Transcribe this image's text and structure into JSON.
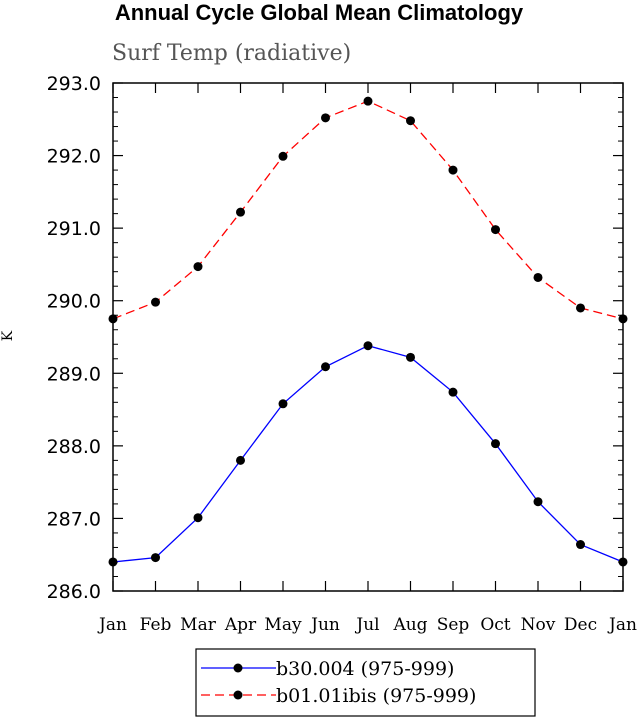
{
  "chart_data": {
    "type": "line",
    "title": "Annual Cycle Global Mean Climatology",
    "subtitle": "Surf Temp (radiative)",
    "ylabel": "K",
    "xlabel": "",
    "categories": [
      "Jan",
      "Feb",
      "Mar",
      "Apr",
      "May",
      "Jun",
      "Jul",
      "Aug",
      "Sep",
      "Oct",
      "Nov",
      "Dec",
      "Jan"
    ],
    "ylim": [
      286.0,
      293.0
    ],
    "yticks": [
      "286.0",
      "287.0",
      "288.0",
      "289.0",
      "290.0",
      "291.0",
      "292.0",
      "293.0"
    ],
    "series": [
      {
        "name": "b30.004 (975-999)",
        "color": "#0000ff",
        "line_style": "solid",
        "values": [
          286.4,
          286.46,
          287.01,
          287.8,
          288.58,
          289.09,
          289.38,
          289.22,
          288.74,
          288.03,
          287.23,
          286.64,
          286.4
        ]
      },
      {
        "name": "b01.01ibis (975-999)",
        "color": "#ff0000",
        "line_style": "dashed",
        "values": [
          289.75,
          289.98,
          290.47,
          291.22,
          291.99,
          292.52,
          292.75,
          292.48,
          291.8,
          290.98,
          290.32,
          289.9,
          289.75
        ]
      }
    ],
    "marker": "filled-circle",
    "legend_position": "bottom-center",
    "grid": false
  }
}
